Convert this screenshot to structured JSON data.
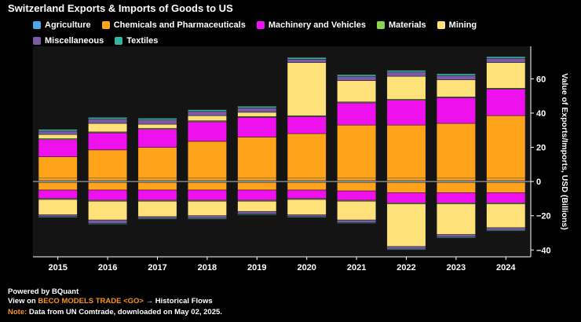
{
  "chart_data": {
    "type": "bar",
    "stacked": true,
    "title": "Switzerland Exports & Imports of Goods to US",
    "ylabel": "Value of Exports/Imports, USD (Billions)",
    "xlabel": "",
    "ylim": [
      -44,
      79
    ],
    "yticks": [
      -40,
      -20,
      0,
      20,
      40,
      60
    ],
    "categories": [
      "2015",
      "2016",
      "2017",
      "2018",
      "2019",
      "2020",
      "2021",
      "2022",
      "2023",
      "2024"
    ],
    "legend_position": "top-left",
    "series": [
      {
        "name": "Agriculture",
        "color": "#4aa8e8",
        "exports": [
          0.5,
          0.5,
          0.5,
          0.5,
          0.5,
          0.5,
          0.5,
          0.5,
          0.5,
          0.5
        ],
        "imports": [
          -0.5,
          -0.5,
          -0.5,
          -0.5,
          -0.5,
          -0.5,
          -0.5,
          -0.5,
          -0.5,
          -0.5
        ]
      },
      {
        "name": "Chemicals and Pharmaceuticals",
        "color": "#ffa31a",
        "exports": [
          14,
          18,
          19.5,
          23,
          25.5,
          27.5,
          32.5,
          32.5,
          33.5,
          38
        ],
        "imports": [
          -4.5,
          -4.5,
          -4.5,
          -4.5,
          -4.5,
          -4.5,
          -5,
          -6,
          -6,
          -6
        ]
      },
      {
        "name": "Machinery and Vehicles",
        "color": "#ee11ee",
        "exports": [
          10,
          10,
          10.5,
          11.5,
          11.5,
          10,
          13,
          14.5,
          15,
          15.5
        ],
        "imports": [
          -5,
          -6,
          -6,
          -6,
          -6,
          -5,
          -5.5,
          -6,
          -6,
          -6
        ]
      },
      {
        "name": "Materials",
        "color": "#8fd14f",
        "exports": [
          0.5,
          0.5,
          0.5,
          0.5,
          0.5,
          0.5,
          0.5,
          0.5,
          0.5,
          0.5
        ],
        "imports": [
          -0.5,
          -0.5,
          -0.5,
          -0.5,
          -0.5,
          -0.5,
          -0.5,
          -0.5,
          -0.5,
          -0.5
        ]
      },
      {
        "name": "Mining",
        "color": "#ffe17a",
        "exports": [
          2.5,
          5,
          2.5,
          3,
          2.5,
          31,
          12.5,
          13.5,
          10,
          15
        ],
        "imports": [
          -9,
          -11,
          -9,
          -8.5,
          -6,
          -9,
          -11,
          -25,
          -18,
          -14
        ]
      },
      {
        "name": "Miscellaneous",
        "color": "#7a5aa6",
        "exports": [
          2,
          2.5,
          2.5,
          2.5,
          2.5,
          2,
          2.5,
          2.5,
          2.5,
          2.5
        ],
        "imports": [
          -1,
          -2,
          -1,
          -1.5,
          -1.5,
          -1,
          -1.5,
          -1.5,
          -1.5,
          -1.5
        ]
      },
      {
        "name": "Textiles",
        "color": "#33b5a5",
        "exports": [
          1,
          1,
          1,
          1,
          1,
          1,
          1,
          1,
          1,
          1
        ],
        "imports": [
          -0.5,
          -0.5,
          -0.5,
          -0.5,
          -0.5,
          -0.5,
          -0.5,
          -0.5,
          -0.5,
          -0.5
        ]
      }
    ]
  },
  "footer": {
    "powered_by": "Powered by BQuant",
    "view_prefix": "View on",
    "view_link": "BECO MODELS TRADE <GO>",
    "view_suffix": "→ Historical Flows",
    "note_label": "Note:",
    "note_text": "Data from UN Comtrade, downloaded on May 02, 2025."
  },
  "colors": {
    "background": "#000000",
    "plot_background": "#141414",
    "bar_outline": "#1f1f1f",
    "accent": "#f7941d"
  }
}
